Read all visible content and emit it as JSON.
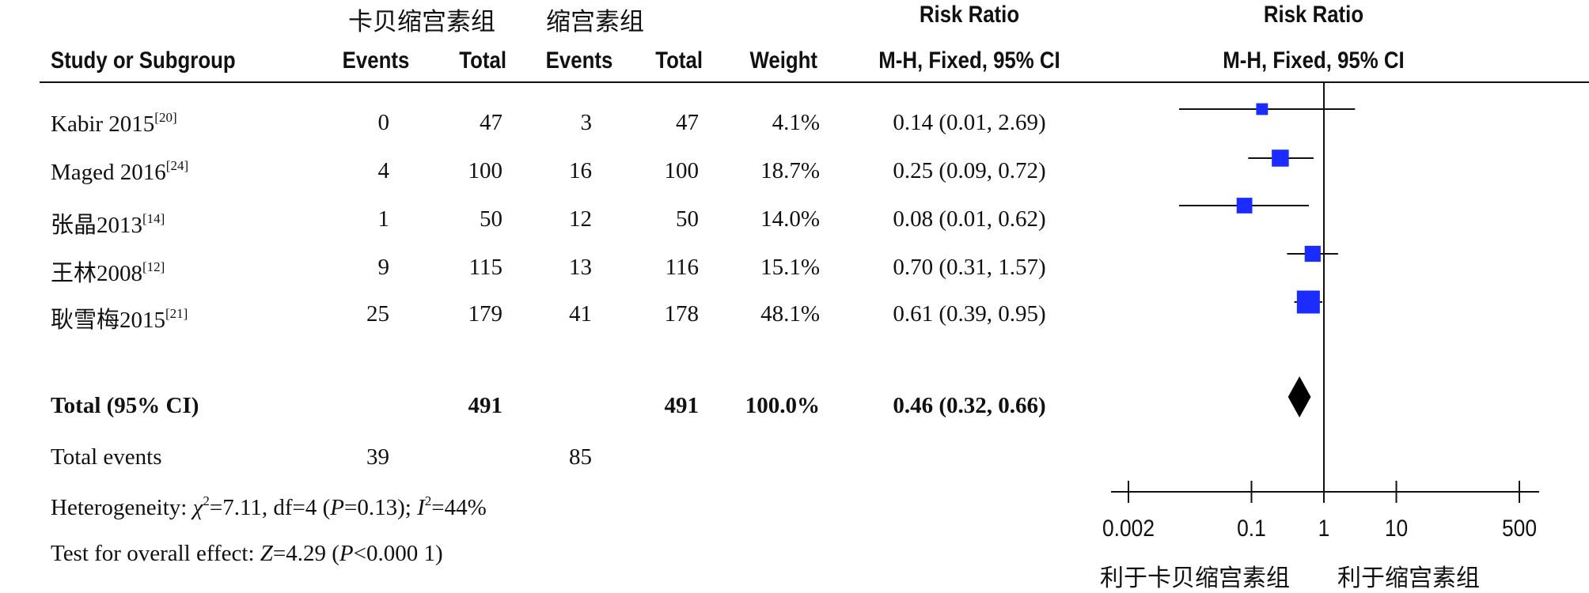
{
  "groups": {
    "experimental": "卡贝缩宫素组",
    "control": "缩宫素组",
    "rr_title": "Risk Ratio",
    "plot_title": "Risk Ratio"
  },
  "columns": {
    "study": "Study or Subgroup",
    "events": "Events",
    "total": "Total",
    "weight": "Weight",
    "method": "M-H, Fixed, 95% CI",
    "plot_method": "M-H, Fixed, 95% CI"
  },
  "studies": [
    {
      "name": "Kabir 2015",
      "ref": "[20]",
      "exp_events": "0",
      "exp_total": "47",
      "ctl_events": "3",
      "ctl_total": "47",
      "weight": "4.1%",
      "ci_text": "0.14 (0.01, 2.69)"
    },
    {
      "name": "Maged 2016",
      "ref": "[24]",
      "exp_events": "4",
      "exp_total": "100",
      "ctl_events": "16",
      "ctl_total": "100",
      "weight": "18.7%",
      "ci_text": "0.25 (0.09, 0.72)"
    },
    {
      "name": "张晶2013",
      "ref": "[14]",
      "exp_events": "1",
      "exp_total": "50",
      "ctl_events": "12",
      "ctl_total": "50",
      "weight": "14.0%",
      "ci_text": "0.08 (0.01, 0.62)"
    },
    {
      "name": "王林2008",
      "ref": "[12]",
      "exp_events": "9",
      "exp_total": "115",
      "ctl_events": "13",
      "ctl_total": "116",
      "weight": "15.1%",
      "ci_text": "0.70 (0.31, 1.57)"
    },
    {
      "name": "耿雪梅2015",
      "ref": "[21]",
      "exp_events": "25",
      "exp_total": "179",
      "ctl_events": "41",
      "ctl_total": "178",
      "weight": "48.1%",
      "ci_text": "0.61 (0.39, 0.95)"
    }
  ],
  "total": {
    "label": "Total (95% CI)",
    "exp_total": "491",
    "ctl_total": "491",
    "weight": "100.0%",
    "ci_text": "0.46 (0.32, 0.66)"
  },
  "total_events": {
    "label": "Total events",
    "exp": "39",
    "ctl": "85"
  },
  "heterogeneity": {
    "prefix": "Heterogeneity: ",
    "chi_symbol": "χ",
    "chi_rest": "=7.11, df=4 (",
    "p_symbol": "P",
    "p_rest": "=0.13); ",
    "i_symbol": "I",
    "i_rest": "=44%"
  },
  "overall": {
    "prefix": "Test for overall effect: ",
    "z_symbol": "Z",
    "z_rest": "=4.29 (",
    "p_symbol": "P",
    "p_rest": "<0.000 1)"
  },
  "favours": {
    "left": "利于卡贝缩宫素组",
    "right": "利于缩宫素组"
  },
  "colors": {
    "marker": "#1a2cff",
    "diamond": "#000000",
    "line": "#111111"
  },
  "chart_data": {
    "type": "forest",
    "scale": "log",
    "xlim": [
      0.002,
      500
    ],
    "null_line": 1,
    "ticks": [
      0.002,
      0.1,
      1,
      10,
      500
    ],
    "tick_labels": [
      "0.002",
      "0.1",
      "1",
      "10",
      "500"
    ],
    "studies": [
      {
        "name": "Kabir 2015",
        "rr": 0.14,
        "lower": 0.01,
        "upper": 2.69,
        "weight": 4.1
      },
      {
        "name": "Maged 2016",
        "rr": 0.25,
        "lower": 0.09,
        "upper": 0.72,
        "weight": 18.7
      },
      {
        "name": "张晶2013",
        "rr": 0.08,
        "lower": 0.01,
        "upper": 0.62,
        "weight": 14.0
      },
      {
        "name": "王林2008",
        "rr": 0.7,
        "lower": 0.31,
        "upper": 1.57,
        "weight": 15.1
      },
      {
        "name": "耿雪梅2015",
        "rr": 0.61,
        "lower": 0.39,
        "upper": 0.95,
        "weight": 48.1
      }
    ],
    "pooled": {
      "rr": 0.46,
      "lower": 0.32,
      "upper": 0.66
    }
  }
}
